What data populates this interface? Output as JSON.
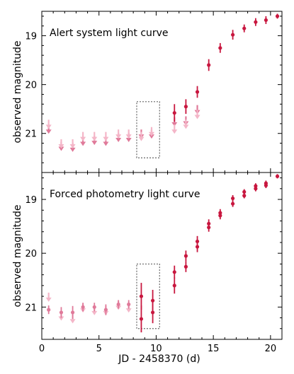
{
  "chart_data": [
    {
      "type": "scatter",
      "title": "Alert system light curve",
      "xlabel": "",
      "ylabel": "observed magnitude",
      "xlim": [
        0,
        21
      ],
      "ylim": [
        21.8,
        18.5
      ],
      "y_inverted": true,
      "xticks": [
        0,
        5,
        10,
        15,
        20
      ],
      "yticks": [
        19,
        20,
        21
      ],
      "highlight_box": {
        "x": [
          8.3,
          10.3
        ],
        "y": [
          20.35,
          21.5
        ]
      },
      "series": [
        {
          "color": "#e07a9a",
          "marker": "upper-limit-arrow",
          "points": [
            {
              "x": 0.6,
              "y": 20.95
            },
            {
              "x": 1.7,
              "y": 21.3
            },
            {
              "x": 2.7,
              "y": 21.32
            },
            {
              "x": 3.6,
              "y": 21.2
            },
            {
              "x": 4.6,
              "y": 21.18
            },
            {
              "x": 5.6,
              "y": 21.2
            },
            {
              "x": 6.7,
              "y": 21.12
            },
            {
              "x": 7.6,
              "y": 21.12
            },
            {
              "x": 8.7,
              "y": 21.05
            },
            {
              "x": 9.6,
              "y": 21.05
            },
            {
              "x": 11.6,
              "y": 20.8
            },
            {
              "x": 12.6,
              "y": 20.78
            },
            {
              "x": 13.6,
              "y": 20.55
            }
          ]
        },
        {
          "color": "#f4b6c8",
          "marker": "upper-limit-arrow",
          "points": [
            {
              "x": 0.6,
              "y": 20.85
            },
            {
              "x": 1.7,
              "y": 21.25
            },
            {
              "x": 2.7,
              "y": 21.25
            },
            {
              "x": 3.6,
              "y": 21.1
            },
            {
              "x": 4.6,
              "y": 21.1
            },
            {
              "x": 5.6,
              "y": 21.1
            },
            {
              "x": 6.7,
              "y": 21.05
            },
            {
              "x": 7.6,
              "y": 21.05
            },
            {
              "x": 8.7,
              "y": 21.1
            },
            {
              "x": 9.6,
              "y": 21.0
            },
            {
              "x": 11.6,
              "y": 20.95
            },
            {
              "x": 12.6,
              "y": 20.85
            },
            {
              "x": 13.6,
              "y": 20.65
            }
          ]
        },
        {
          "color": "#c8173f",
          "marker": "point-errorbar",
          "points": [
            {
              "x": 11.6,
              "y": 20.58,
              "err": 0.18
            },
            {
              "x": 12.6,
              "y": 20.45,
              "err": 0.15
            },
            {
              "x": 13.6,
              "y": 20.15,
              "err": 0.12
            },
            {
              "x": 14.6,
              "y": 19.6,
              "err": 0.12
            },
            {
              "x": 15.6,
              "y": 19.25,
              "err": 0.1
            },
            {
              "x": 16.7,
              "y": 18.98,
              "err": 0.1
            },
            {
              "x": 17.7,
              "y": 18.85,
              "err": 0.08
            },
            {
              "x": 18.7,
              "y": 18.72,
              "err": 0.08
            },
            {
              "x": 19.6,
              "y": 18.68,
              "err": 0.08
            },
            {
              "x": 20.6,
              "y": 18.6,
              "err": 0.05
            }
          ]
        }
      ]
    },
    {
      "type": "scatter",
      "title": "Forced photometry light curve",
      "xlabel": "JD - 2458370 (d)",
      "ylabel": "observed magnitude",
      "xlim": [
        0,
        21
      ],
      "ylim": [
        21.6,
        18.5
      ],
      "y_inverted": true,
      "xticks": [
        0,
        5,
        10,
        15,
        20
      ],
      "yticks": [
        19,
        20,
        21
      ],
      "highlight_box": {
        "x": [
          8.3,
          10.3
        ],
        "y": [
          20.2,
          21.4
        ]
      },
      "series": [
        {
          "color": "#f4b6c8",
          "marker": "upper-limit-arrow",
          "points": [
            {
              "x": 0.6,
              "y": 20.85
            },
            {
              "x": 1.7,
              "y": 21.2
            },
            {
              "x": 2.7,
              "y": 21.25
            },
            {
              "x": 3.6,
              "y": 21.05
            },
            {
              "x": 4.6,
              "y": 21.1
            },
            {
              "x": 5.6,
              "y": 21.1
            },
            {
              "x": 6.7,
              "y": 21.0
            },
            {
              "x": 7.6,
              "y": 21.05
            }
          ]
        },
        {
          "color": "#e07a9a",
          "marker": "point-errorbar",
          "points": [
            {
              "x": 0.6,
              "y": 21.05,
              "err": 0.08
            },
            {
              "x": 1.7,
              "y": 21.1,
              "err": 0.1
            },
            {
              "x": 2.7,
              "y": 21.1,
              "err": 0.12
            },
            {
              "x": 3.6,
              "y": 21.0,
              "err": 0.08
            },
            {
              "x": 4.6,
              "y": 21.0,
              "err": 0.08
            },
            {
              "x": 5.6,
              "y": 21.05,
              "err": 0.1
            },
            {
              "x": 6.7,
              "y": 20.95,
              "err": 0.08
            },
            {
              "x": 7.6,
              "y": 20.95,
              "err": 0.08
            }
          ]
        },
        {
          "color": "#c8173f",
          "marker": "point-errorbar",
          "points": [
            {
              "x": 8.7,
              "y": 20.8,
              "err": 0.25
            },
            {
              "x": 8.7,
              "y": 21.22,
              "err": 0.25
            },
            {
              "x": 9.7,
              "y": 20.88,
              "err": 0.2
            },
            {
              "x": 9.7,
              "y": 21.1,
              "err": 0.2
            },
            {
              "x": 11.6,
              "y": 20.35,
              "err": 0.12
            },
            {
              "x": 11.6,
              "y": 20.6,
              "err": 0.15
            },
            {
              "x": 12.6,
              "y": 20.05,
              "err": 0.1
            },
            {
              "x": 12.6,
              "y": 20.25,
              "err": 0.1
            },
            {
              "x": 13.6,
              "y": 19.78,
              "err": 0.1
            },
            {
              "x": 13.6,
              "y": 19.88,
              "err": 0.1
            },
            {
              "x": 14.6,
              "y": 19.45,
              "err": 0.08
            },
            {
              "x": 14.6,
              "y": 19.52,
              "err": 0.08
            },
            {
              "x": 15.6,
              "y": 19.25,
              "err": 0.07
            },
            {
              "x": 15.6,
              "y": 19.3,
              "err": 0.07
            },
            {
              "x": 16.7,
              "y": 18.98,
              "err": 0.06
            },
            {
              "x": 16.7,
              "y": 19.08,
              "err": 0.06
            },
            {
              "x": 17.7,
              "y": 18.86,
              "err": 0.05
            },
            {
              "x": 17.7,
              "y": 18.93,
              "err": 0.05
            },
            {
              "x": 18.7,
              "y": 18.75,
              "err": 0.05
            },
            {
              "x": 18.7,
              "y": 18.8,
              "err": 0.05
            },
            {
              "x": 19.6,
              "y": 18.7,
              "err": 0.05
            },
            {
              "x": 19.6,
              "y": 18.74,
              "err": 0.05
            },
            {
              "x": 20.6,
              "y": 18.57,
              "err": 0.04
            }
          ]
        }
      ]
    }
  ]
}
